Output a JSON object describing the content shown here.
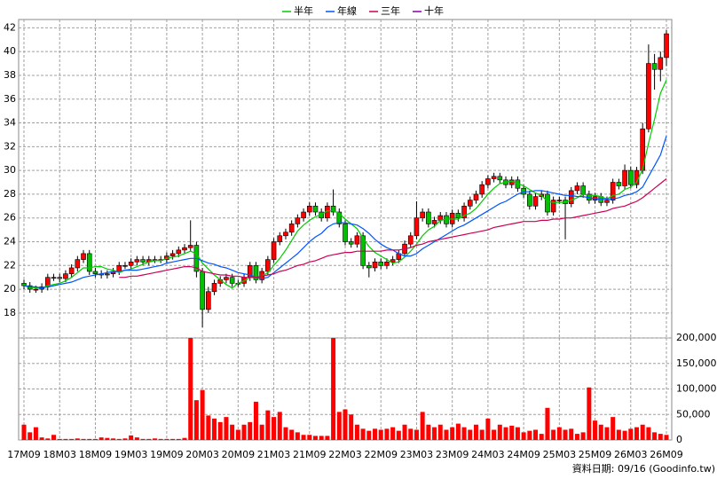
{
  "chart_data": [
    {
      "type": "candlestick",
      "legend": "top",
      "grid": true,
      "up_color": "#ff0000",
      "down_color": "#00c000",
      "categories": [
        "17M09",
        null,
        null,
        null,
        null,
        null,
        "18M03",
        null,
        null,
        null,
        null,
        null,
        "18M09",
        null,
        null,
        null,
        null,
        null,
        "19M03",
        null,
        null,
        null,
        null,
        null,
        "19M09",
        null,
        null,
        null,
        null,
        null,
        "20M03",
        null,
        null,
        null,
        null,
        null,
        "20M09",
        null,
        null,
        null,
        null,
        null,
        "21M03",
        null,
        null,
        null,
        null,
        null,
        "21M09",
        null,
        null,
        null,
        null,
        null,
        "22M03",
        null,
        null,
        null,
        null,
        null,
        "22M09",
        null,
        null,
        null,
        null,
        null,
        "23M03",
        null,
        null,
        null,
        null,
        null,
        "23M09",
        null,
        null,
        null,
        null,
        null,
        "24M03",
        null,
        null,
        null,
        null,
        null,
        "24M09",
        null,
        null,
        null,
        null,
        null,
        "25M03",
        null,
        null,
        null,
        null,
        null,
        "25M09",
        null,
        null,
        null,
        null,
        null,
        "26M03",
        null,
        null,
        null,
        null,
        null,
        "26M09"
      ],
      "open": [
        20.5,
        20.3,
        20.0,
        20.0,
        20.2,
        21.0,
        21.0,
        20.9,
        21.3,
        21.8,
        22.5,
        23.0,
        21.5,
        21.3,
        21.2,
        21.3,
        21.5,
        22.0,
        22.0,
        22.3,
        22.5,
        22.3,
        22.5,
        22.5,
        22.5,
        22.8,
        23.0,
        23.3,
        23.5,
        23.7,
        21.5,
        18.3,
        19.8,
        20.5,
        20.8,
        21.0,
        20.5,
        20.5,
        21.0,
        22.0,
        20.8,
        21.5,
        22.5,
        24.0,
        24.5,
        24.8,
        25.5,
        26.0,
        26.5,
        27.0,
        26.5,
        26.0,
        27.0,
        26.5,
        25.5,
        24.0,
        23.8,
        24.5,
        22.0,
        21.8,
        22.3,
        22.0,
        22.3,
        22.5,
        23.0,
        23.8,
        24.5,
        26.0,
        26.5,
        25.5,
        25.8,
        26.2,
        25.5,
        26.4,
        26.0,
        27.0,
        27.5,
        28.0,
        28.8,
        29.3,
        29.5,
        29.2,
        28.8,
        29.2,
        28.5,
        28.0,
        27.0,
        27.8,
        28.0,
        26.5,
        27.5,
        27.5,
        27.2,
        28.3,
        28.7,
        28.0,
        27.5,
        27.8,
        27.3,
        27.5,
        29.0,
        28.7,
        30.0,
        28.8,
        30.0,
        33.5,
        39.0,
        38.5,
        39.5
      ],
      "high": [
        20.8,
        20.6,
        20.3,
        20.5,
        21.3,
        21.3,
        21.3,
        21.6,
        22.1,
        22.8,
        23.3,
        23.3,
        21.8,
        21.6,
        21.6,
        21.8,
        22.3,
        22.3,
        22.6,
        22.8,
        22.8,
        22.8,
        22.8,
        22.8,
        23.1,
        23.3,
        23.6,
        23.8,
        25.8,
        24.0,
        21.8,
        20.2,
        20.8,
        21.1,
        21.3,
        21.3,
        20.8,
        21.3,
        22.3,
        22.3,
        21.8,
        22.8,
        24.3,
        24.8,
        25.1,
        25.8,
        26.3,
        26.8,
        27.3,
        27.3,
        26.8,
        27.3,
        28.4,
        26.8,
        25.8,
        24.3,
        24.8,
        24.8,
        22.3,
        22.6,
        22.6,
        22.6,
        22.8,
        23.3,
        24.1,
        24.8,
        27.4,
        26.8,
        26.8,
        26.1,
        26.5,
        26.5,
        26.7,
        26.7,
        27.3,
        27.8,
        28.3,
        29.1,
        29.6,
        29.8,
        29.8,
        29.5,
        29.5,
        29.5,
        28.8,
        28.3,
        28.1,
        28.3,
        28.3,
        27.8,
        27.8,
        27.8,
        28.6,
        29.0,
        29.0,
        28.3,
        28.1,
        28.1,
        27.8,
        29.3,
        29.3,
        30.5,
        30.3,
        30.3,
        34.0,
        40.6,
        39.8,
        40.0,
        41.8
      ],
      "low": [
        20.0,
        19.7,
        19.7,
        19.7,
        19.9,
        20.7,
        20.6,
        20.6,
        21.0,
        21.5,
        22.2,
        21.2,
        21.0,
        20.9,
        20.9,
        21.0,
        21.2,
        21.7,
        21.7,
        22.0,
        22.0,
        22.0,
        22.2,
        22.2,
        22.2,
        22.5,
        22.7,
        23.0,
        23.2,
        21.0,
        16.8,
        18.0,
        19.5,
        20.2,
        20.5,
        20.2,
        20.2,
        20.2,
        20.7,
        20.5,
        20.5,
        21.2,
        22.2,
        23.7,
        24.2,
        24.5,
        25.2,
        25.7,
        26.2,
        26.2,
        25.7,
        25.7,
        26.2,
        25.2,
        23.7,
        23.5,
        23.5,
        21.7,
        21.0,
        21.5,
        21.7,
        21.7,
        22.0,
        22.2,
        22.7,
        23.5,
        24.2,
        25.7,
        25.2,
        25.2,
        25.5,
        25.2,
        25.2,
        25.7,
        25.7,
        26.7,
        27.2,
        27.7,
        28.5,
        29.0,
        28.9,
        28.5,
        28.5,
        28.2,
        27.7,
        26.7,
        26.7,
        27.5,
        26.2,
        26.2,
        27.2,
        24.2,
        26.9,
        28.0,
        27.7,
        27.2,
        27.2,
        27.0,
        27.0,
        27.2,
        28.4,
        28.4,
        28.5,
        28.5,
        29.7,
        33.2,
        36.8,
        37.5,
        38.8
      ],
      "close": [
        20.3,
        20.0,
        20.0,
        20.2,
        21.0,
        21.0,
        20.9,
        21.3,
        21.8,
        22.5,
        23.0,
        21.5,
        21.3,
        21.2,
        21.3,
        21.5,
        22.0,
        22.0,
        22.3,
        22.5,
        22.3,
        22.5,
        22.5,
        22.5,
        22.8,
        23.0,
        23.3,
        23.5,
        23.7,
        21.5,
        18.3,
        19.8,
        20.5,
        20.8,
        21.0,
        20.5,
        20.5,
        21.0,
        22.0,
        20.8,
        21.5,
        22.5,
        24.0,
        24.5,
        24.8,
        25.5,
        26.0,
        26.5,
        27.0,
        26.5,
        26.0,
        27.0,
        26.5,
        25.5,
        24.0,
        23.8,
        24.5,
        22.0,
        21.8,
        22.3,
        22.0,
        22.3,
        22.5,
        23.0,
        23.8,
        24.5,
        26.0,
        26.5,
        25.5,
        25.8,
        26.2,
        25.5,
        26.4,
        26.0,
        27.0,
        27.5,
        28.0,
        28.8,
        29.3,
        29.5,
        29.2,
        28.8,
        29.2,
        28.5,
        28.0,
        27.0,
        27.8,
        28.0,
        26.5,
        27.5,
        27.5,
        27.2,
        28.3,
        28.7,
        28.0,
        27.5,
        27.8,
        27.3,
        27.5,
        29.0,
        28.7,
        30.0,
        28.8,
        30.0,
        33.5,
        39.0,
        38.5,
        39.5,
        41.5
      ],
      "series": [
        {
          "name": "半年",
          "color": "#00cc00",
          "values": [
            20.3,
            20.2,
            20.1,
            20.1,
            20.3,
            20.4,
            20.5,
            20.7,
            21.0,
            21.4,
            21.8,
            21.8,
            21.9,
            21.9,
            21.7,
            21.6,
            21.4,
            21.6,
            21.7,
            21.9,
            22.1,
            22.3,
            22.4,
            22.4,
            22.6,
            22.7,
            22.8,
            23.0,
            23.2,
            23.0,
            22.2,
            21.7,
            21.2,
            20.8,
            20.4,
            20.1,
            20.5,
            20.7,
            21.0,
            21.0,
            21.1,
            21.4,
            22.0,
            22.6,
            23.3,
            24.1,
            24.9,
            25.4,
            25.8,
            26.1,
            26.3,
            26.6,
            26.6,
            26.4,
            25.9,
            25.5,
            25.1,
            24.3,
            23.6,
            23.1,
            22.8,
            22.5,
            22.2,
            22.3,
            22.7,
            23.2,
            23.8,
            24.5,
            25.0,
            25.3,
            25.8,
            25.9,
            25.9,
            25.9,
            26.2,
            26.4,
            26.8,
            27.4,
            28.0,
            28.5,
            28.9,
            29.0,
            29.1,
            28.9,
            28.7,
            28.4,
            28.1,
            27.9,
            27.4,
            27.3,
            27.3,
            27.3,
            27.5,
            27.7,
            28.0,
            27.9,
            27.9,
            27.8,
            27.6,
            27.9,
            28.0,
            28.4,
            28.6,
            29.0,
            30.1,
            32.3,
            34.3,
            36.5,
            37.6
          ]
        },
        {
          "name": "年線",
          "color": "#0055ff",
          "values": [
            20.3,
            20.2,
            20.2,
            20.1,
            20.2,
            20.3,
            20.4,
            20.5,
            20.6,
            20.8,
            21.0,
            21.1,
            21.2,
            21.3,
            21.4,
            21.5,
            21.5,
            21.6,
            21.6,
            21.6,
            21.7,
            21.8,
            21.9,
            22.0,
            22.2,
            22.3,
            22.4,
            22.5,
            22.6,
            22.6,
            22.4,
            22.2,
            22.1,
            21.9,
            21.8,
            21.6,
            21.4,
            21.3,
            21.2,
            21.0,
            20.9,
            21.0,
            21.4,
            21.8,
            22.2,
            22.6,
            23.0,
            23.5,
            24.0,
            24.4,
            24.7,
            25.2,
            25.5,
            25.6,
            25.6,
            25.5,
            25.4,
            25.1,
            24.7,
            24.2,
            23.8,
            23.5,
            23.3,
            23.0,
            22.8,
            22.8,
            23.0,
            23.4,
            23.7,
            24.0,
            24.3,
            24.6,
            24.9,
            25.2,
            25.4,
            25.7,
            26.0,
            26.3,
            26.6,
            26.9,
            27.2,
            27.4,
            27.7,
            28.0,
            28.2,
            28.2,
            28.3,
            28.3,
            28.2,
            28.1,
            28.0,
            27.9,
            27.9,
            27.8,
            27.8,
            27.7,
            27.6,
            27.6,
            27.6,
            27.6,
            27.7,
            27.9,
            28.0,
            28.2,
            28.6,
            29.5,
            30.4,
            31.3,
            32.9
          ]
        },
        {
          "name": "三年",
          "color": "#cc0055",
          "values": [
            null,
            null,
            null,
            null,
            null,
            null,
            null,
            null,
            null,
            null,
            null,
            null,
            null,
            null,
            null,
            null,
            21.0,
            21.0,
            21.1,
            21.1,
            21.2,
            21.3,
            21.4,
            21.5,
            21.6,
            21.7,
            21.8,
            21.9,
            21.9,
            21.8,
            21.5,
            21.4,
            21.3,
            21.2,
            21.2,
            21.1,
            21.1,
            21.0,
            21.0,
            21.0,
            21.1,
            21.2,
            21.3,
            21.5,
            21.6,
            21.8,
            22.0,
            22.1,
            22.3,
            22.4,
            22.6,
            22.8,
            22.9,
            23.0,
            23.1,
            23.1,
            23.2,
            23.2,
            23.2,
            23.2,
            23.2,
            23.3,
            23.3,
            23.3,
            23.4,
            23.5,
            23.7,
            23.8,
            24.0,
            24.1,
            24.2,
            24.3,
            24.4,
            24.5,
            24.6,
            24.7,
            24.8,
            24.9,
            25.0,
            25.2,
            25.3,
            25.4,
            25.5,
            25.6,
            25.7,
            25.7,
            25.7,
            25.8,
            25.8,
            25.9,
            25.9,
            26.0,
            26.0,
            26.1,
            26.2,
            26.3,
            26.4,
            26.5,
            26.6,
            26.8,
            26.9,
            27.0,
            27.2,
            27.4,
            27.7,
            28.1,
            28.5,
            28.9,
            29.3
          ]
        },
        {
          "name": "十年",
          "color": "#8800aa",
          "values": [
            null,
            null,
            null,
            null,
            null,
            null,
            null,
            null,
            null,
            null,
            null,
            null,
            null,
            null,
            null,
            null,
            null,
            null,
            null,
            null,
            null,
            null,
            null,
            null,
            null,
            null,
            null,
            null,
            null,
            null,
            null,
            null,
            null,
            null,
            null,
            null,
            null,
            null,
            null,
            null,
            null,
            null,
            null,
            null,
            null,
            null,
            null,
            null,
            null,
            null,
            null,
            null,
            null,
            null,
            null,
            null,
            null,
            null,
            null,
            null,
            null,
            null,
            null,
            null,
            null,
            null,
            null,
            null,
            null,
            null,
            null,
            null,
            null,
            null,
            null,
            null,
            null,
            null,
            null,
            null,
            null,
            null,
            null,
            null,
            null,
            null,
            null,
            null,
            null,
            null,
            null,
            null,
            null,
            null,
            null,
            null,
            null,
            null,
            null,
            null,
            null,
            null,
            null,
            null,
            null,
            null,
            null,
            null,
            null
          ]
        }
      ],
      "ylim": [
        15.9,
        42.7
      ],
      "yticks": [
        18,
        20,
        22,
        24,
        26,
        28,
        30,
        32,
        34,
        36,
        38,
        40,
        42
      ]
    },
    {
      "type": "bar",
      "color": "#ff0000",
      "grid": true,
      "values": [
        30000,
        15000,
        25000,
        5000,
        3000,
        10000,
        2000,
        2000,
        2000,
        3000,
        2000,
        2000,
        2000,
        5000,
        4000,
        3000,
        2000,
        3000,
        9000,
        5000,
        2000,
        2000,
        3000,
        2000,
        2000,
        2000,
        2000,
        4000,
        200000,
        78000,
        98000,
        48000,
        42000,
        35000,
        45000,
        30000,
        20000,
        30000,
        35000,
        75000,
        30000,
        58000,
        45000,
        55000,
        25000,
        20000,
        15000,
        10000,
        10000,
        8000,
        8000,
        8000,
        200000,
        55000,
        60000,
        50000,
        30000,
        22000,
        18000,
        22000,
        20000,
        22000,
        25000,
        18000,
        30000,
        22000,
        20000,
        55000,
        30000,
        25000,
        30000,
        20000,
        25000,
        32000,
        25000,
        20000,
        30000,
        20000,
        42000,
        20000,
        30000,
        25000,
        28000,
        25000,
        15000,
        18000,
        20000,
        12000,
        63000,
        20000,
        25000,
        20000,
        22000,
        12000,
        15000,
        103000,
        38000,
        30000,
        25000,
        45000,
        20000,
        18000,
        22000,
        25000,
        30000,
        25000,
        15000,
        12000,
        10000
      ],
      "ylim": [
        0,
        200000
      ],
      "yticks": [
        0,
        {
          "value": 50000,
          "label": "50,000"
        },
        {
          "value": 100000,
          "label": "100,000"
        },
        {
          "value": 150000,
          "label": "150,000"
        },
        {
          "value": 200000,
          "label": "200,000"
        }
      ]
    }
  ],
  "footnote": "資料日期: 09/16  (Goodinfo.tw)"
}
